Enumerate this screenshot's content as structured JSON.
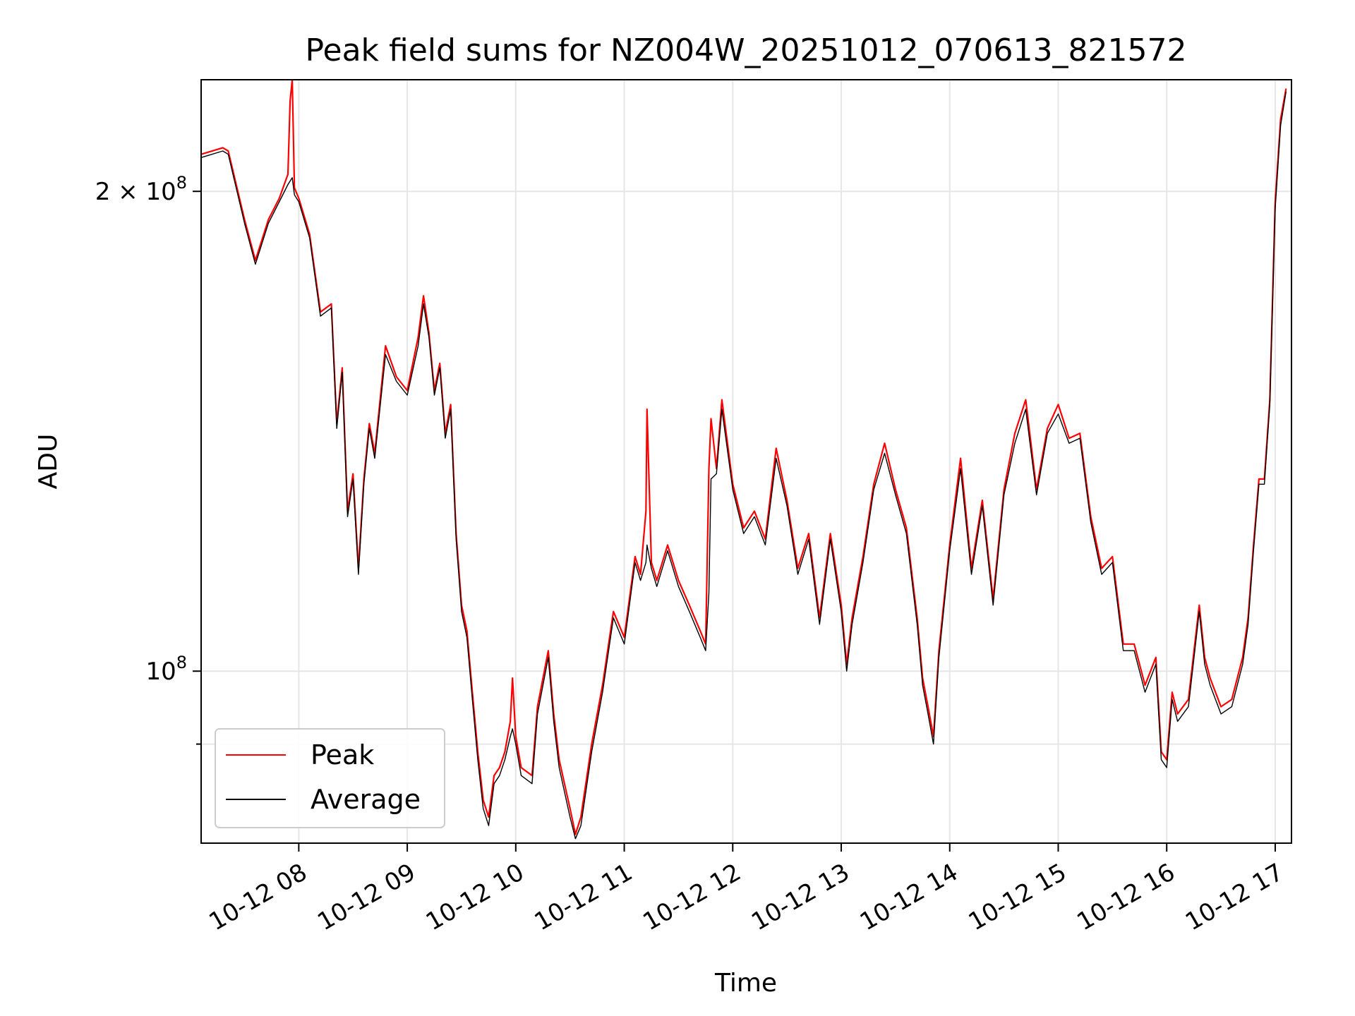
{
  "chart_data": {
    "type": "line",
    "title": "Peak field sums for NZ004W_20251012_070613_821572",
    "xlabel": "Time",
    "ylabel": "ADU",
    "yscale": "log",
    "grid": true,
    "legend_location": "lower-left",
    "xlim": [
      7.1,
      17.15
    ],
    "ylim": [
      78000000,
      235000000
    ],
    "x_ticks": [
      {
        "value": 8,
        "label": "10-12 08"
      },
      {
        "value": 9,
        "label": "10-12 09"
      },
      {
        "value": 10,
        "label": "10-12 10"
      },
      {
        "value": 11,
        "label": "10-12 11"
      },
      {
        "value": 12,
        "label": "10-12 12"
      },
      {
        "value": 13,
        "label": "10-12 13"
      },
      {
        "value": 14,
        "label": "10-12 14"
      },
      {
        "value": 15,
        "label": "10-12 15"
      },
      {
        "value": 16,
        "label": "10-12 16"
      },
      {
        "value": 17,
        "label": "10-12 17"
      }
    ],
    "y_major_ticks": [
      {
        "value": 100000000,
        "base": "10",
        "exp": "8"
      },
      {
        "value": 200000000,
        "base": "2 × 10",
        "exp": "8"
      }
    ],
    "y_minor_ticks": [
      90000000
    ],
    "series": [
      {
        "name": "Peak",
        "color": "#ff0000",
        "x": [
          7.1,
          7.3,
          7.35,
          7.5,
          7.6,
          7.72,
          7.82,
          7.9,
          7.92,
          7.94,
          7.96,
          8.0,
          8.1,
          8.2,
          8.3,
          8.35,
          8.4,
          8.45,
          8.5,
          8.55,
          8.6,
          8.65,
          8.7,
          8.8,
          8.9,
          9.0,
          9.1,
          9.15,
          9.2,
          9.25,
          9.3,
          9.35,
          9.4,
          9.45,
          9.5,
          9.55,
          9.6,
          9.65,
          9.7,
          9.75,
          9.8,
          9.85,
          9.9,
          9.95,
          9.97,
          10.0,
          10.05,
          10.15,
          10.2,
          10.3,
          10.35,
          10.4,
          10.5,
          10.55,
          10.6,
          10.7,
          10.8,
          10.9,
          11.0,
          11.1,
          11.15,
          11.2,
          11.21,
          11.25,
          11.3,
          11.4,
          11.5,
          11.6,
          11.7,
          11.75,
          11.78,
          11.8,
          11.85,
          11.9,
          12.0,
          12.1,
          12.2,
          12.3,
          12.4,
          12.5,
          12.6,
          12.7,
          12.8,
          12.9,
          13.0,
          13.05,
          13.1,
          13.2,
          13.3,
          13.4,
          13.5,
          13.6,
          13.7,
          13.75,
          13.8,
          13.85,
          13.9,
          14.0,
          14.1,
          14.2,
          14.3,
          14.4,
          14.5,
          14.6,
          14.7,
          14.8,
          14.9,
          15.0,
          15.1,
          15.2,
          15.3,
          15.4,
          15.5,
          15.6,
          15.7,
          15.8,
          15.9,
          15.95,
          16.0,
          16.05,
          16.1,
          16.2,
          16.3,
          16.35,
          16.4,
          16.5,
          16.6,
          16.7,
          16.75,
          16.8,
          16.85,
          16.9,
          16.95,
          17.0,
          17.05,
          17.1
        ],
        "values": [
          211000000,
          213000000,
          212000000,
          192000000,
          181000000,
          192000000,
          198000000,
          205000000,
          228000000,
          235000000,
          201000000,
          198000000,
          188000000,
          168000000,
          170000000,
          143000000,
          155000000,
          126000000,
          133000000,
          116000000,
          132000000,
          143000000,
          137000000,
          160000000,
          153000000,
          150000000,
          162000000,
          172000000,
          163000000,
          150000000,
          156000000,
          141000000,
          147000000,
          122000000,
          110000000,
          106000000,
          97000000,
          89000000,
          83000000,
          81000000,
          86000000,
          87000000,
          89000000,
          93000000,
          99000000,
          91000000,
          87000000,
          86000000,
          95000000,
          103000000,
          94000000,
          88000000,
          82000000,
          79000000,
          81000000,
          90000000,
          98000000,
          109000000,
          105000000,
          118000000,
          115000000,
          126000000,
          146000000,
          117000000,
          114000000,
          120000000,
          114000000,
          110000000,
          106000000,
          104000000,
          134000000,
          144000000,
          134000000,
          148000000,
          131000000,
          123000000,
          126000000,
          121000000,
          138000000,
          128000000,
          116000000,
          122000000,
          108000000,
          122000000,
          110000000,
          101000000,
          108000000,
          118000000,
          131000000,
          139000000,
          130000000,
          123000000,
          108000000,
          99000000,
          95000000,
          91000000,
          103000000,
          120000000,
          136000000,
          116000000,
          128000000,
          111000000,
          130000000,
          141000000,
          148000000,
          130000000,
          142000000,
          147000000,
          140000000,
          141000000,
          125000000,
          116000000,
          118000000,
          104000000,
          104000000,
          98000000,
          102000000,
          89000000,
          88000000,
          97000000,
          94000000,
          96000000,
          110000000,
          102000000,
          99000000,
          95000000,
          96000000,
          102000000,
          108000000,
          120000000,
          132000000,
          132000000,
          148000000,
          197000000,
          222000000,
          232000000
        ],
        "line_width": 2.2
      },
      {
        "name": "Average",
        "color": "#000000",
        "x": [
          7.1,
          7.3,
          7.35,
          7.5,
          7.6,
          7.72,
          7.82,
          7.9,
          7.92,
          7.94,
          7.96,
          8.0,
          8.1,
          8.2,
          8.3,
          8.35,
          8.4,
          8.45,
          8.5,
          8.55,
          8.6,
          8.65,
          8.7,
          8.8,
          8.9,
          9.0,
          9.1,
          9.15,
          9.2,
          9.25,
          9.3,
          9.35,
          9.4,
          9.45,
          9.5,
          9.55,
          9.6,
          9.65,
          9.7,
          9.75,
          9.8,
          9.85,
          9.9,
          9.95,
          9.97,
          10.0,
          10.05,
          10.15,
          10.2,
          10.3,
          10.35,
          10.4,
          10.5,
          10.55,
          10.6,
          10.7,
          10.8,
          10.9,
          11.0,
          11.1,
          11.15,
          11.2,
          11.21,
          11.25,
          11.3,
          11.4,
          11.5,
          11.6,
          11.7,
          11.75,
          11.78,
          11.8,
          11.85,
          11.9,
          12.0,
          12.1,
          12.2,
          12.3,
          12.4,
          12.5,
          12.6,
          12.7,
          12.8,
          12.9,
          13.0,
          13.05,
          13.1,
          13.2,
          13.3,
          13.4,
          13.5,
          13.6,
          13.7,
          13.75,
          13.8,
          13.85,
          13.9,
          14.0,
          14.1,
          14.2,
          14.3,
          14.4,
          14.5,
          14.6,
          14.7,
          14.8,
          14.9,
          15.0,
          15.1,
          15.2,
          15.3,
          15.4,
          15.5,
          15.6,
          15.7,
          15.8,
          15.9,
          15.95,
          16.0,
          16.05,
          16.1,
          16.2,
          16.3,
          16.35,
          16.4,
          16.5,
          16.6,
          16.7,
          16.75,
          16.8,
          16.85,
          16.9,
          16.95,
          17.0,
          17.05,
          17.1
        ],
        "values": [
          210000000,
          212000000,
          211000000,
          191000000,
          180000000,
          191000000,
          197000000,
          202000000,
          203000000,
          204000000,
          199000000,
          197000000,
          187000000,
          167000000,
          169000000,
          142000000,
          154000000,
          125000000,
          132000000,
          115000000,
          131000000,
          142000000,
          136000000,
          158000000,
          152000000,
          149000000,
          160000000,
          170000000,
          162000000,
          149000000,
          155000000,
          140000000,
          146000000,
          121000000,
          109000000,
          105000000,
          96000000,
          88000000,
          82000000,
          80000000,
          85000000,
          86000000,
          88000000,
          91000000,
          92000000,
          90000000,
          86000000,
          85000000,
          94000000,
          102000000,
          93000000,
          87000000,
          81000000,
          78500000,
          80000000,
          89000000,
          97000000,
          108000000,
          104000000,
          117000000,
          114000000,
          117000000,
          120000000,
          116000000,
          113000000,
          119000000,
          113000000,
          109000000,
          105000000,
          103000000,
          112000000,
          132000000,
          133000000,
          146000000,
          130000000,
          122000000,
          125000000,
          120000000,
          136000000,
          127000000,
          115000000,
          121000000,
          107000000,
          121000000,
          109000000,
          100000000,
          107000000,
          117000000,
          130000000,
          137000000,
          129000000,
          122000000,
          107000000,
          98000000,
          94000000,
          90000000,
          102000000,
          119000000,
          134000000,
          115000000,
          127000000,
          110000000,
          129000000,
          139000000,
          146000000,
          129000000,
          141000000,
          145000000,
          139000000,
          140000000,
          124000000,
          115000000,
          117000000,
          103000000,
          103000000,
          97000000,
          101000000,
          88000000,
          87000000,
          96000000,
          93000000,
          95000000,
          109000000,
          101000000,
          98000000,
          94000000,
          95000000,
          101000000,
          107000000,
          119000000,
          131000000,
          131000000,
          147000000,
          195000000,
          220000000,
          231000000
        ],
        "line_width": 1.4
      }
    ]
  }
}
